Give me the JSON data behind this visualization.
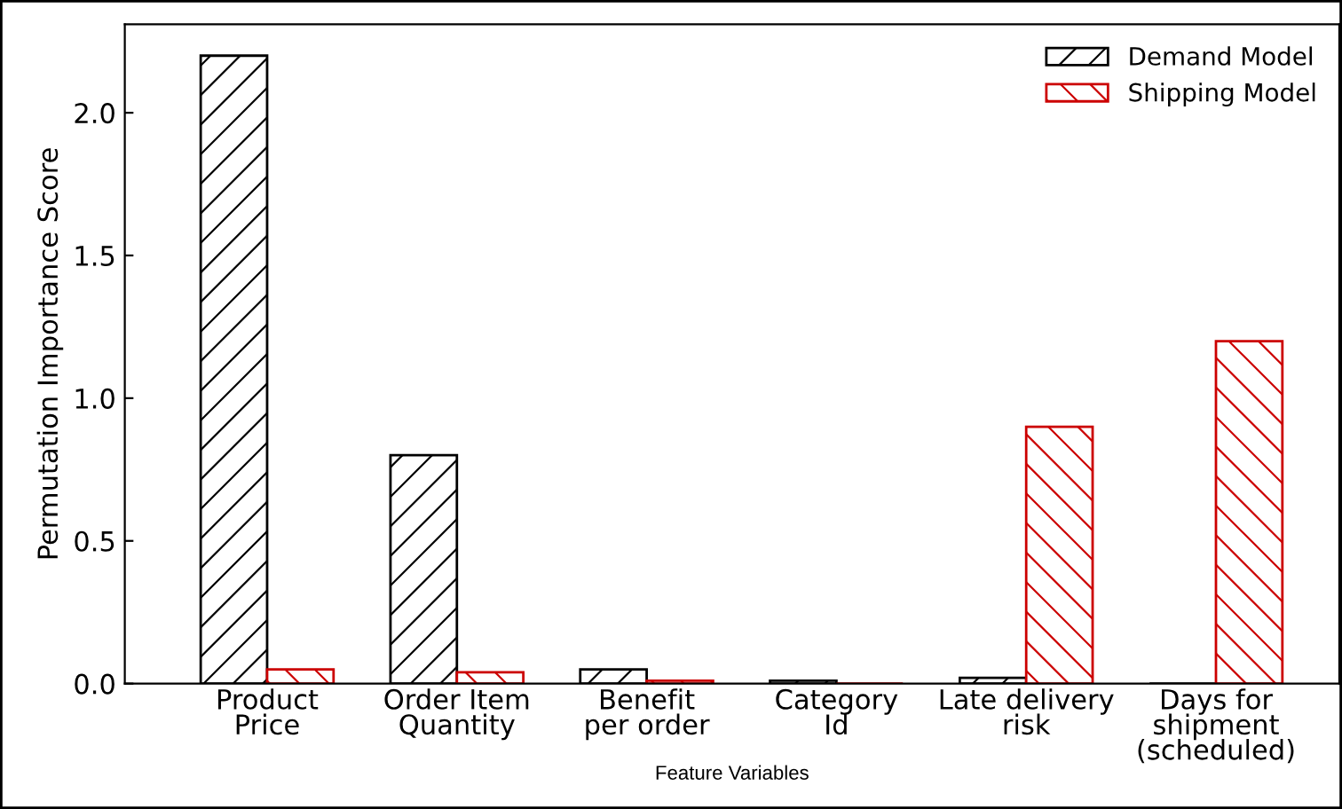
{
  "chart_data": {
    "type": "bar",
    "xlabel": "Feature Variables",
    "ylabel": "Permutation Importance Score",
    "categories": [
      "Product\nPrice",
      "Order Item\nQuantity",
      "Benefit\nper order",
      "Category\nId",
      "Late delivery\nrisk",
      "Days for\nshipment\n(scheduled)"
    ],
    "series": [
      {
        "name": "Demand Model",
        "color": "#000000",
        "values": [
          2.2,
          0.8,
          0.05,
          0.01,
          0.02,
          0
        ]
      },
      {
        "name": "Shipping Model",
        "color": "#cc0000",
        "values": [
          0.05,
          0.04,
          0.01,
          0,
          0.9,
          1.2
        ]
      }
    ],
    "ylim": [
      0,
      2.31
    ],
    "yticks": [
      {
        "value": 0,
        "label": "0.0"
      },
      0.5,
      {
        "value": 1,
        "label": "1.0"
      },
      1.5,
      {
        "value": 2,
        "label": "2.0"
      }
    ],
    "grid": false,
    "legend": "top right"
  }
}
